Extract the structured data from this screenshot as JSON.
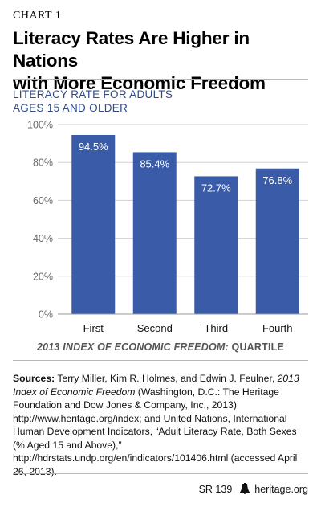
{
  "chart_label": "CHART 1",
  "title_line1": "Literacy Rates Are Higher in Nations",
  "title_line2": "with More Economic Freedom",
  "subtitle_line1": "LITERACY RATE FOR ADULTS",
  "subtitle_line2": "AGES 15 AND OLDER",
  "xtitle_italic": "2013 INDEX OF ECONOMIC FREEDOM:",
  "xtitle_rest": " QUARTILE",
  "sources": {
    "label": "Sources:",
    "seg1": " Terry Miller, Kim R. Holmes, and Edwin J. Feulner, ",
    "seg2_italic": "2013 Index of Economic Freedom",
    "seg3": " (Washington, D.C.: The Heritage Foundation and Dow Jones & Company, Inc., 2013) http://www.heritage.org/index; and United Nations, International Human Development Indicators, “Adult Literacy Rate, Both Sexes (% Aged 15 and Above),” http://hdrstats.undp.org/en/indicators/101406.html (accessed April 26, 2013)."
  },
  "footer": {
    "report": "SR 139",
    "site": "heritage.org"
  },
  "colors": {
    "bar": "#3a5ca8",
    "axis_text": "#6a6a6a",
    "grid": "#d0d0d0"
  },
  "chart_data": {
    "type": "bar",
    "categories": [
      "First",
      "Second",
      "Third",
      "Fourth"
    ],
    "values": [
      94.5,
      85.4,
      72.7,
      76.8
    ],
    "data_labels": [
      "94.5%",
      "85.4%",
      "72.7%",
      "76.8%"
    ],
    "ylim": [
      0,
      100
    ],
    "yticks": [
      0,
      20,
      40,
      60,
      80,
      100
    ],
    "ytick_labels": [
      "0%",
      "20%",
      "40%",
      "60%",
      "80%",
      "100%"
    ],
    "grid": true,
    "title": "LITERACY RATE FOR ADULTS AGES 15 AND OLDER",
    "xlabel": "2013 INDEX OF ECONOMIC FREEDOM: QUARTILE",
    "ylabel": ""
  }
}
